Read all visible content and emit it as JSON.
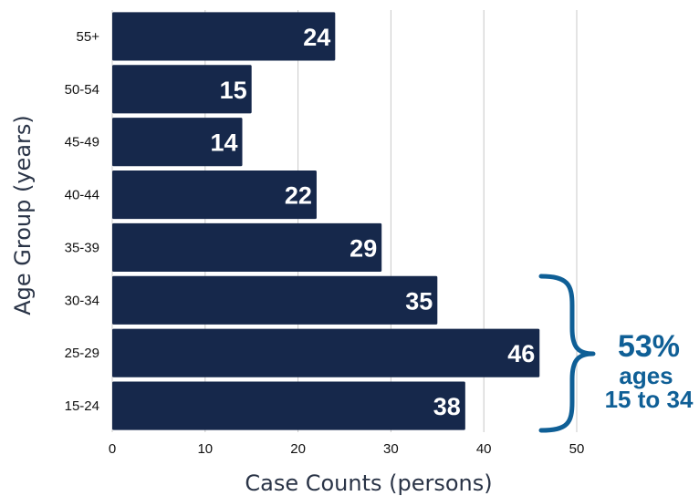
{
  "chart_data": {
    "type": "bar",
    "orientation": "horizontal",
    "categories": [
      "55+",
      "50-54",
      "45-49",
      "40-44",
      "35-39",
      "30-34",
      "25-29",
      "15-24"
    ],
    "values": [
      24,
      15,
      14,
      22,
      29,
      35,
      46,
      38
    ],
    "xlabel": "Case Counts (persons)",
    "ylabel": "Age Group (years)",
    "xlim": [
      0,
      50
    ],
    "xticks": [
      "0",
      "10",
      "20",
      "30",
      "40",
      "50"
    ],
    "grid": "vertical",
    "annotation": {
      "percent": "53%",
      "line1": "ages",
      "line2": "15 to 34",
      "bracket_categories": [
        "30-34",
        "25-29",
        "15-24"
      ]
    }
  },
  "colors": {
    "bar": "#16284b",
    "grid": "#c8c8c8",
    "annotation": "#0f5f96"
  }
}
